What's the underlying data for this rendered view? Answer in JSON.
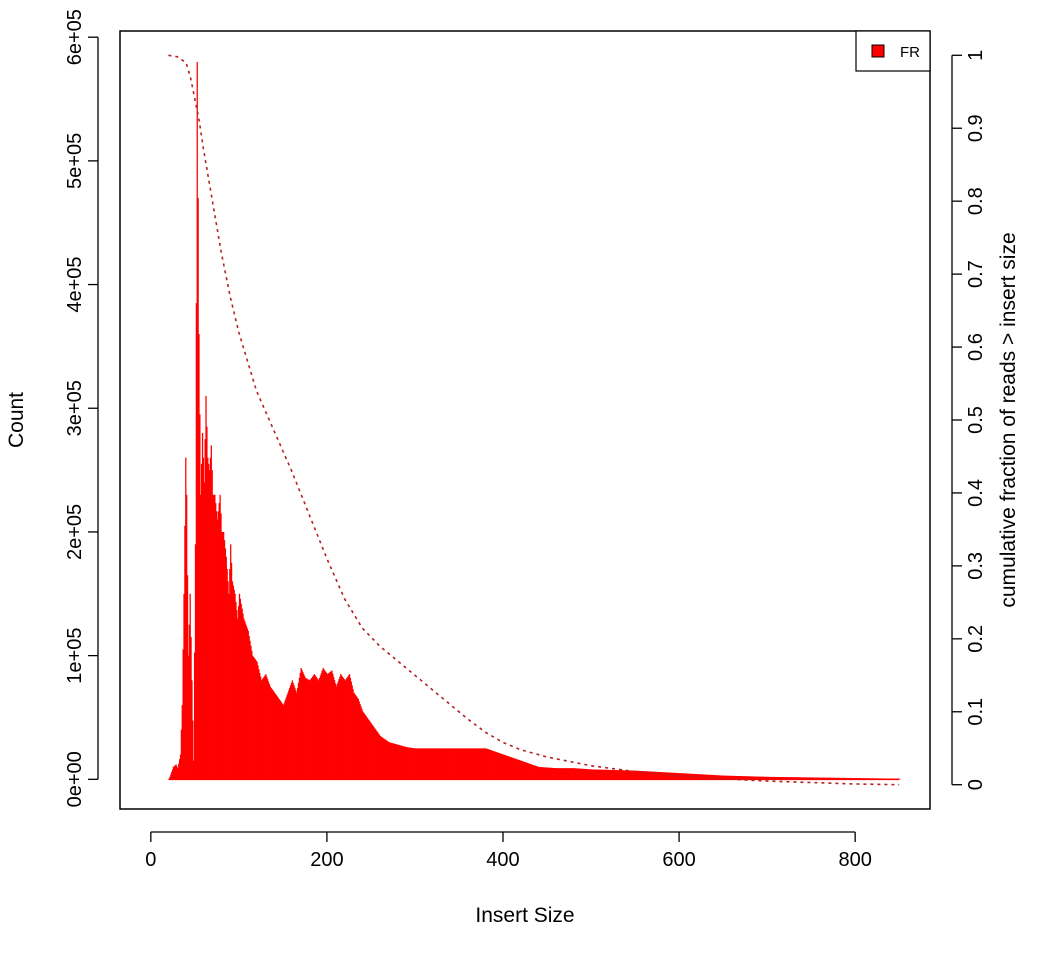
{
  "chart_data": {
    "type": "bar",
    "title": "",
    "xlabel": "Insert Size",
    "ylabel": "Count",
    "y2label": "cumulative fraction of reads > insert size",
    "xlim": [
      -35,
      885
    ],
    "ylim": [
      -24000,
      605000
    ],
    "y2lim": [
      -0.0333,
      1.0333
    ],
    "x_ticks": [
      0,
      200,
      400,
      600,
      800
    ],
    "x_tick_labels": [
      "0",
      "200",
      "400",
      "600",
      "800"
    ],
    "y_ticks": [
      0,
      100000,
      200000,
      300000,
      400000,
      500000,
      600000
    ],
    "y_tick_labels": [
      "0e+00",
      "1e+05",
      "2e+05",
      "3e+05",
      "4e+05",
      "5e+05",
      "6e+05"
    ],
    "y2_ticks": [
      0,
      0.1,
      0.2,
      0.3,
      0.4,
      0.5,
      0.6,
      0.7,
      0.8,
      0.9,
      1
    ],
    "y2_tick_labels": [
      "0",
      "0.1",
      "0.2",
      "0.3",
      "0.4",
      "0.5",
      "0.6",
      "0.7",
      "0.8",
      "0.9",
      "1"
    ],
    "grid": false,
    "legend": {
      "position": "top-right",
      "entries": [
        {
          "label": "FR",
          "color": "#ff0000"
        }
      ]
    },
    "series": [
      {
        "name": "FR",
        "kind": "histogram",
        "color": "#ff0000",
        "x": [
          20,
          25,
          28,
          30,
          33,
          35,
          37,
          39,
          40,
          42,
          44,
          46,
          48,
          50,
          52,
          54,
          56,
          58,
          60,
          62,
          64,
          66,
          68,
          70,
          72,
          75,
          78,
          80,
          82,
          85,
          88,
          90,
          92,
          95,
          98,
          100,
          105,
          110,
          115,
          120,
          125,
          130,
          135,
          140,
          145,
          150,
          155,
          160,
          165,
          170,
          175,
          180,
          185,
          190,
          195,
          200,
          205,
          210,
          215,
          220,
          225,
          230,
          235,
          240,
          245,
          250,
          255,
          260,
          270,
          280,
          290,
          300,
          320,
          340,
          360,
          380,
          400,
          420,
          440,
          460,
          480,
          500,
          550,
          600,
          650,
          700,
          750,
          800,
          850
        ],
        "y": [
          0,
          10000,
          12000,
          9000,
          20000,
          60000,
          150000,
          260000,
          230000,
          100000,
          150000,
          80000,
          15000,
          190000,
          580000,
          360000,
          230000,
          280000,
          240000,
          310000,
          260000,
          250000,
          270000,
          230000,
          230000,
          210000,
          230000,
          200000,
          200000,
          180000,
          150000,
          190000,
          160000,
          150000,
          130000,
          150000,
          130000,
          120000,
          100000,
          95000,
          80000,
          85000,
          75000,
          70000,
          65000,
          60000,
          70000,
          80000,
          70000,
          90000,
          82000,
          80000,
          85000,
          80000,
          90000,
          85000,
          88000,
          75000,
          85000,
          80000,
          85000,
          70000,
          65000,
          55000,
          50000,
          45000,
          40000,
          35000,
          30000,
          28000,
          26000,
          25000,
          25000,
          25000,
          25000,
          25000,
          20000,
          15000,
          10000,
          9000,
          9000,
          8000,
          7000,
          5000,
          3000,
          2000,
          1500,
          1000,
          500
        ]
      },
      {
        "name": "cumulative fraction of reads > insert size",
        "kind": "line",
        "axis": "right",
        "style": "dotted",
        "color": "#b22222",
        "x": [
          20,
          30,
          40,
          45,
          50,
          55,
          60,
          70,
          80,
          90,
          100,
          110,
          120,
          140,
          160,
          180,
          200,
          220,
          240,
          260,
          280,
          300,
          320,
          340,
          360,
          380,
          400,
          420,
          450,
          500,
          550,
          600,
          650,
          700,
          750,
          800,
          850
        ],
        "y": [
          1.0,
          0.998,
          0.99,
          0.97,
          0.94,
          0.91,
          0.87,
          0.8,
          0.73,
          0.67,
          0.62,
          0.58,
          0.54,
          0.485,
          0.43,
          0.37,
          0.31,
          0.255,
          0.215,
          0.19,
          0.17,
          0.15,
          0.13,
          0.11,
          0.09,
          0.072,
          0.058,
          0.048,
          0.038,
          0.026,
          0.018,
          0.012,
          0.008,
          0.005,
          0.003,
          0.001,
          0.0
        ]
      }
    ]
  }
}
